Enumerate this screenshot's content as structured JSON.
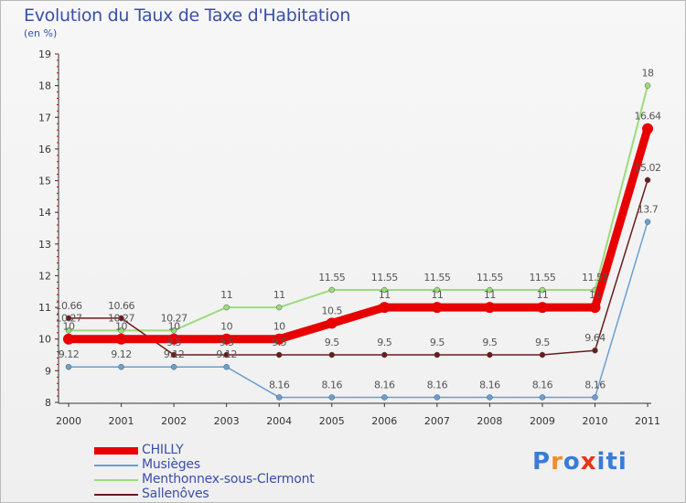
{
  "title": "Evolution du Taux de Taxe d'Habitation",
  "subtitle": "(en %)",
  "logo": {
    "text": "Proxiti",
    "letters": [
      "P",
      "r",
      "o",
      "x",
      "i",
      "t",
      "i"
    ],
    "colors": [
      "#3a7bd5",
      "#f28c28",
      "#3a7bd5",
      "#e5341b",
      "#3a7bd5",
      "#3a7bd5",
      "#3a7bd5"
    ]
  },
  "chart_data": {
    "type": "line",
    "title": "Evolution du Taux de Taxe d'Habitation",
    "ylabel": "(en %)",
    "xlabel": "",
    "ylim": [
      8,
      19
    ],
    "yticks": [
      8,
      9,
      10,
      11,
      12,
      13,
      14,
      15,
      16,
      17,
      18,
      19
    ],
    "categories": [
      "2000",
      "2001",
      "2002",
      "2003",
      "2004",
      "2005",
      "2006",
      "2007",
      "2008",
      "2009",
      "2010",
      "2011"
    ],
    "grid": false,
    "legend_position": "bottom-left",
    "series": [
      {
        "name": "CHILLY",
        "color": "#e80000",
        "width": 9,
        "values": [
          10,
          10,
          10,
          10,
          10,
          10.5,
          11,
          11,
          11,
          11,
          11,
          16.64
        ],
        "labels": [
          "10",
          "10",
          "10",
          "10",
          "10",
          "10.5",
          "11",
          "11",
          "11",
          "11",
          "11",
          "16.64"
        ]
      },
      {
        "name": "Musièges",
        "color": "#6a9fd0",
        "width": 1.5,
        "values": [
          9.12,
          9.12,
          9.12,
          9.12,
          8.16,
          8.16,
          8.16,
          8.16,
          8.16,
          8.16,
          8.16,
          13.7
        ],
        "labels": [
          "9.12",
          "9.12",
          "9.12",
          "9.12",
          "8.16",
          "8.16",
          "8.16",
          "8.16",
          "8.16",
          "8.16",
          "8.16",
          "13.7"
        ]
      },
      {
        "name": "Menthonnex-sous-Clermont",
        "color": "#9bdc7a",
        "width": 2,
        "values": [
          10.27,
          10.27,
          10.27,
          11,
          11,
          11.55,
          11.55,
          11.55,
          11.55,
          11.55,
          11.55,
          18
        ],
        "labels": [
          "10.27",
          "10.27",
          "10.27",
          "11",
          "11",
          "11.55",
          "11.55",
          "11.55",
          "11.55",
          "11.55",
          "11.55",
          "18"
        ]
      },
      {
        "name": "Sallenôves",
        "color": "#6b1c1c",
        "width": 1.5,
        "values": [
          10.66,
          10.66,
          9.5,
          9.5,
          9.5,
          9.5,
          9.5,
          9.5,
          9.5,
          9.5,
          9.64,
          15.02
        ],
        "labels": [
          "10.66",
          "10.66",
          "9.5",
          "9.5",
          "9.5",
          "9.5",
          "9.5",
          "9.5",
          "9.5",
          "9.5",
          "9.64",
          "15.02"
        ]
      }
    ]
  }
}
